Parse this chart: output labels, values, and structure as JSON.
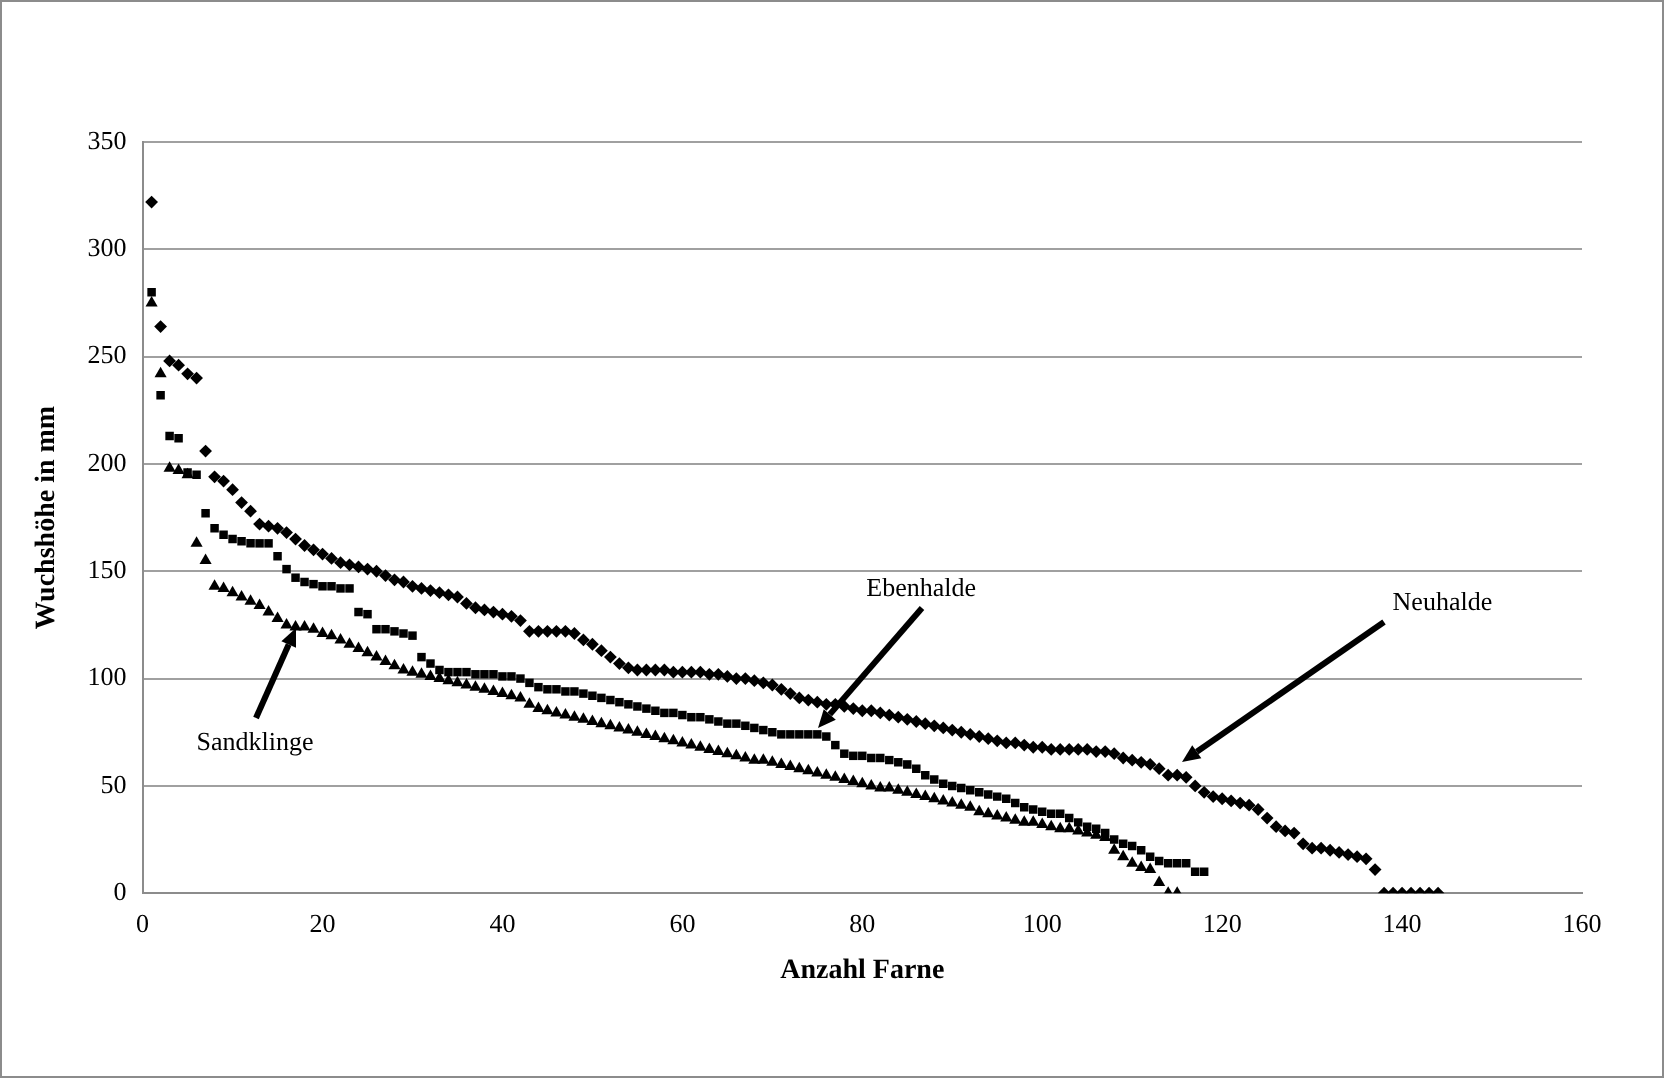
{
  "chart_data": {
    "type": "scatter",
    "xlabel": "Anzahl Farne",
    "ylabel": "Wuchshöhe in mm",
    "xlim": [
      0,
      160
    ],
    "xticks": [
      0,
      20,
      40,
      60,
      80,
      100,
      120,
      140,
      160
    ],
    "ylim": [
      0,
      350
    ],
    "yticks": [
      0,
      50,
      100,
      150,
      200,
      250,
      300,
      350
    ],
    "grid": "y",
    "legend": false,
    "series": [
      {
        "color": "#000000",
        "marker": "diamond",
        "x": [
          1,
          2,
          3,
          4,
          5,
          6,
          7,
          8,
          9,
          10,
          11,
          12,
          13,
          14,
          15,
          16,
          17,
          18,
          19,
          20,
          21,
          22,
          23,
          24,
          25,
          26,
          27,
          28,
          29,
          30,
          31,
          32,
          33,
          34,
          35,
          36,
          37,
          38,
          39,
          40,
          41,
          42,
          43,
          44,
          45,
          46,
          47,
          48,
          49,
          50,
          51,
          52,
          53,
          54,
          55,
          56,
          57,
          58,
          59,
          60,
          61,
          62,
          63,
          64,
          65,
          66,
          67,
          68,
          69,
          70,
          71,
          72,
          73,
          74,
          75,
          76,
          77,
          78,
          79,
          80,
          81,
          82,
          83,
          84,
          85,
          86,
          87,
          88,
          89,
          90,
          91,
          92,
          93,
          94,
          95,
          96,
          97,
          98,
          99,
          100,
          101,
          102,
          103,
          104,
          105,
          106,
          107,
          108,
          109,
          110,
          111,
          112,
          113,
          114,
          115,
          116,
          117,
          118,
          119,
          120,
          121,
          122,
          123,
          124,
          125,
          126,
          127,
          128,
          129,
          130,
          131,
          132,
          133,
          134,
          135,
          136,
          137,
          138,
          139,
          140,
          141,
          142,
          143,
          144
        ],
        "values": [
          322,
          264,
          248,
          246,
          242,
          240,
          206,
          194,
          192,
          188,
          182,
          178,
          172,
          171,
          170,
          168,
          165,
          162,
          160,
          158,
          156,
          154,
          153,
          152,
          151,
          150,
          148,
          146,
          145,
          143,
          142,
          141,
          140,
          139,
          138,
          135,
          133,
          132,
          131,
          130,
          129,
          127,
          122,
          122,
          122,
          122,
          122,
          121,
          118,
          116,
          113,
          110,
          107,
          105,
          104,
          104,
          104,
          104,
          103,
          103,
          103,
          103,
          102,
          102,
          101,
          100,
          100,
          99,
          98,
          97,
          95,
          93,
          91,
          90,
          89,
          88,
          88,
          87,
          86,
          85,
          85,
          84,
          83,
          82,
          81,
          80,
          79,
          78,
          77,
          76,
          75,
          74,
          73,
          72,
          71,
          70,
          70,
          69,
          68,
          68,
          67,
          67,
          67,
          67,
          67,
          66,
          66,
          65,
          63,
          62,
          61,
          60,
          58,
          55,
          55,
          54,
          50,
          47,
          45,
          44,
          43,
          42,
          41,
          39,
          35,
          31,
          29,
          28,
          23,
          21,
          21,
          20,
          19,
          18,
          17,
          16,
          11,
          0,
          0,
          0,
          0,
          0,
          0,
          0
        ]
      },
      {
        "color": "#000000",
        "marker": "square",
        "x": [
          1,
          2,
          3,
          4,
          5,
          6,
          7,
          8,
          9,
          10,
          11,
          12,
          13,
          14,
          15,
          16,
          17,
          18,
          19,
          20,
          21,
          22,
          23,
          24,
          25,
          26,
          27,
          28,
          29,
          30,
          31,
          32,
          33,
          34,
          35,
          36,
          37,
          38,
          39,
          40,
          41,
          42,
          43,
          44,
          45,
          46,
          47,
          48,
          49,
          50,
          51,
          52,
          53,
          54,
          55,
          56,
          57,
          58,
          59,
          60,
          61,
          62,
          63,
          64,
          65,
          66,
          67,
          68,
          69,
          70,
          71,
          72,
          73,
          74,
          75,
          76,
          77,
          78,
          79,
          80,
          81,
          82,
          83,
          84,
          85,
          86,
          87,
          88,
          89,
          90,
          91,
          92,
          93,
          94,
          95,
          96,
          97,
          98,
          99,
          100,
          101,
          102,
          103,
          104,
          105,
          106,
          107,
          108,
          109,
          110,
          111,
          112,
          113,
          114,
          115,
          116,
          117,
          118
        ],
        "values": [
          280,
          232,
          213,
          212,
          196,
          195,
          177,
          170,
          167,
          165,
          164,
          163,
          163,
          163,
          157,
          151,
          147,
          145,
          144,
          143,
          143,
          142,
          142,
          131,
          130,
          123,
          123,
          122,
          121,
          120,
          110,
          107,
          104,
          103,
          103,
          103,
          102,
          102,
          102,
          101,
          101,
          100,
          98,
          96,
          95,
          95,
          94,
          94,
          93,
          92,
          91,
          90,
          89,
          88,
          87,
          86,
          85,
          84,
          84,
          83,
          82,
          82,
          81,
          80,
          79,
          79,
          78,
          77,
          76,
          75,
          74,
          74,
          74,
          74,
          74,
          73,
          69,
          65,
          64,
          64,
          63,
          63,
          62,
          61,
          60,
          58,
          55,
          53,
          51,
          50,
          49,
          48,
          47,
          46,
          45,
          44,
          42,
          40,
          39,
          38,
          37,
          37,
          35,
          33,
          31,
          30,
          28,
          25,
          23,
          22,
          20,
          17,
          15,
          14,
          14,
          14,
          10,
          10
        ]
      },
      {
        "color": "#000000",
        "marker": "triangle",
        "x": [
          1,
          2,
          3,
          4,
          5,
          6,
          7,
          8,
          9,
          10,
          11,
          12,
          13,
          14,
          15,
          16,
          17,
          18,
          19,
          20,
          21,
          22,
          23,
          24,
          25,
          26,
          27,
          28,
          29,
          30,
          31,
          32,
          33,
          34,
          35,
          36,
          37,
          38,
          39,
          40,
          41,
          42,
          43,
          44,
          45,
          46,
          47,
          48,
          49,
          50,
          51,
          52,
          53,
          54,
          55,
          56,
          57,
          58,
          59,
          60,
          61,
          62,
          63,
          64,
          65,
          66,
          67,
          68,
          69,
          70,
          71,
          72,
          73,
          74,
          75,
          76,
          77,
          78,
          79,
          80,
          81,
          82,
          83,
          84,
          85,
          86,
          87,
          88,
          89,
          90,
          91,
          92,
          93,
          94,
          95,
          96,
          97,
          98,
          99,
          100,
          101,
          102,
          103,
          104,
          105,
          106,
          107,
          108,
          109,
          110,
          111,
          112,
          113,
          114,
          115
        ],
        "values": [
          275,
          242,
          198,
          197,
          195,
          163,
          155,
          143,
          142,
          140,
          138,
          136,
          134,
          131,
          128,
          125,
          124,
          124,
          123,
          121,
          120,
          118,
          116,
          114,
          112,
          110,
          108,
          106,
          104,
          103,
          102,
          101,
          100,
          99,
          98,
          97,
          96,
          95,
          94,
          93,
          92,
          91,
          88,
          86,
          85,
          84,
          83,
          82,
          81,
          80,
          79,
          78,
          77,
          76,
          75,
          74,
          73,
          72,
          71,
          70,
          69,
          68,
          67,
          66,
          65,
          64,
          63,
          62,
          62,
          61,
          60,
          59,
          58,
          57,
          56,
          55,
          54,
          53,
          52,
          51,
          50,
          49,
          49,
          48,
          47,
          46,
          45,
          44,
          43,
          42,
          41,
          40,
          38,
          37,
          36,
          35,
          34,
          33,
          33,
          32,
          31,
          30,
          30,
          29,
          28,
          27,
          26,
          20,
          17,
          14,
          12,
          11,
          5,
          0,
          0
        ]
      }
    ],
    "annotations": [
      {
        "text": "Neuhalde",
        "x": 115.6,
        "y": 61
      },
      {
        "text": "Ebenhalde",
        "x": 75,
        "y": 77
      },
      {
        "text": "Sandklinge",
        "x": 17,
        "y": 124
      }
    ]
  }
}
